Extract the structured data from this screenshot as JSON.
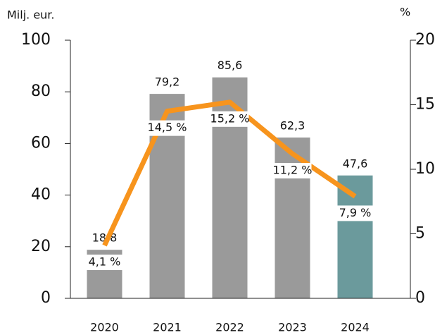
{
  "chart_data": {
    "type": "bar",
    "y_label": "Milj. eur.",
    "y2_label": "%",
    "categories": [
      "2020",
      "2021",
      "2022",
      "2023",
      "2024"
    ],
    "series": [
      {
        "type": "bar",
        "colors": [
          "#9a9a9a",
          "#9a9a9a",
          "#9a9a9a",
          "#9a9a9a",
          "#6b9a9c"
        ],
        "values": [
          18.8,
          79.2,
          85.6,
          62.3,
          47.6
        ],
        "value_labels": [
          "18,8",
          "79,2",
          "85,6",
          "62,3",
          "47,6"
        ]
      },
      {
        "type": "line",
        "axis": "y2",
        "color": "#f7941d",
        "values": [
          4.1,
          14.5,
          15.2,
          11.2,
          7.9
        ],
        "value_labels": [
          "4,1 %",
          "14,5 %",
          "15,2 %",
          "11,2 %",
          "7,9 %"
        ]
      }
    ],
    "ylim": [
      0,
      100
    ],
    "yticks": [
      0,
      20,
      40,
      60,
      80,
      100
    ],
    "y2lim": [
      0,
      20
    ],
    "y2ticks": [
      0,
      5,
      10,
      15,
      20
    ]
  }
}
